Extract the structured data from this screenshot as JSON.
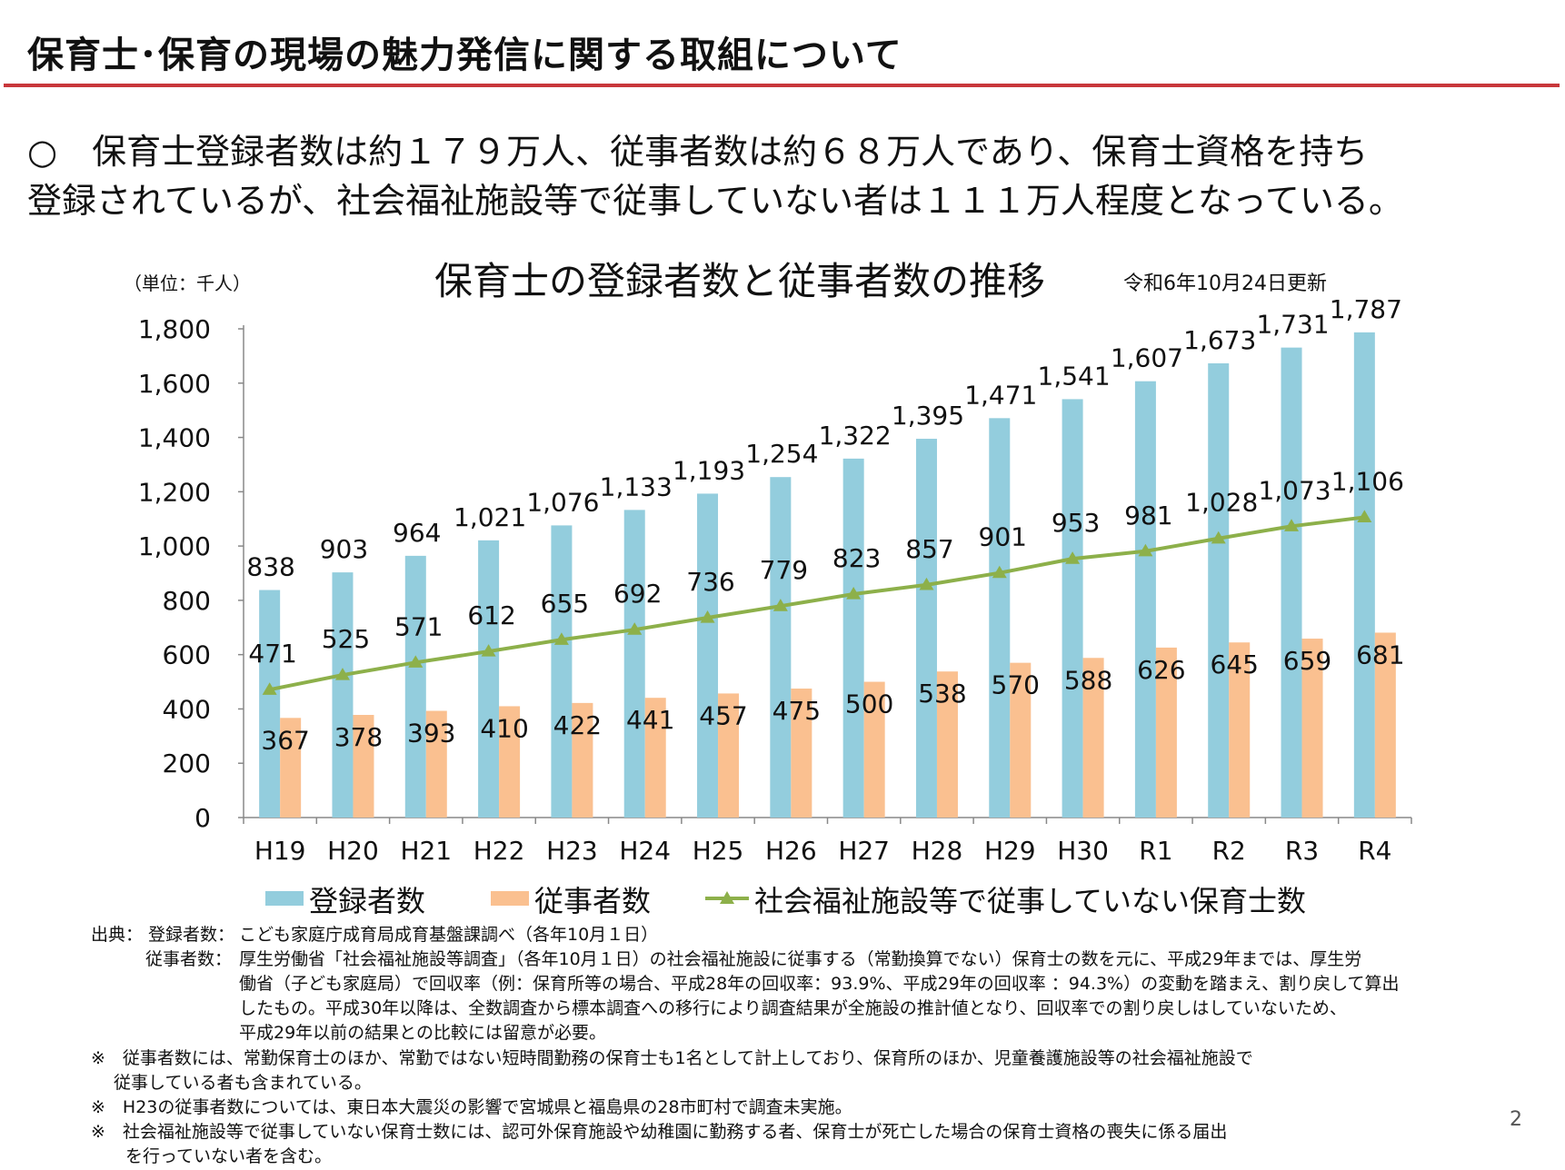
{
  "page": {
    "title": "保育士･保育の現場の魅力発信に関する取組について",
    "summary_line1": "○　保育士登録者数は約１７９万人、従事者数は約６８万人であり、保育士資格を持ち",
    "summary_line2": "登録されているが、社会福祉施設等で従事していない者は１１１万人程度となっている。",
    "page_number": "2"
  },
  "chart_data": {
    "type": "bar",
    "title": "保育士の登録者数と従事者数の推移",
    "unit_label": "（単位：千人）",
    "update_date": "令和6年10月24日更新",
    "categories": [
      "H19",
      "H20",
      "H21",
      "H22",
      "H23",
      "H24",
      "H25",
      "H26",
      "H27",
      "H28",
      "H29",
      "H30",
      "R1",
      "R2",
      "R3",
      "R4"
    ],
    "ylim": [
      0,
      1800
    ],
    "yticks": [
      0,
      200,
      400,
      600,
      800,
      1000,
      1200,
      1400,
      1600,
      1800
    ],
    "ytick_labels": [
      "0",
      "200",
      "400",
      "600",
      "800",
      "1,000",
      "1,200",
      "1,400",
      "1,600",
      "1,800"
    ],
    "series": [
      {
        "name": "登録者数",
        "kind": "bar",
        "color": "#93cddd",
        "values": [
          838,
          903,
          964,
          1021,
          1076,
          1133,
          1193,
          1254,
          1322,
          1395,
          1471,
          1541,
          1607,
          1673,
          1731,
          1787
        ],
        "labels": [
          "838",
          "903",
          "964",
          "1,021",
          "1,076",
          "1,133",
          "1,193",
          "1,254",
          "1,322",
          "1,395",
          "1,471",
          "1,541",
          "1,607",
          "1,673",
          "1,731",
          "1,787"
        ]
      },
      {
        "name": "従事者数",
        "kind": "bar",
        "color": "#fac090",
        "values": [
          367,
          378,
          393,
          410,
          422,
          441,
          457,
          475,
          500,
          538,
          570,
          588,
          626,
          645,
          659,
          681
        ],
        "labels": [
          "367",
          "378",
          "393",
          "410",
          "422",
          "441",
          "457",
          "475",
          "500",
          "538",
          "570",
          "588",
          "626",
          "645",
          "659",
          "681"
        ]
      },
      {
        "name": "社会福祉施設等で従事していない保育士数",
        "kind": "line",
        "color": "#8db04a",
        "values": [
          471,
          525,
          571,
          612,
          655,
          692,
          736,
          779,
          823,
          857,
          901,
          953,
          981,
          1028,
          1073,
          1106
        ],
        "labels": [
          "471",
          "525",
          "571",
          "612",
          "655",
          "692",
          "736",
          "779",
          "823",
          "857",
          "901",
          "953",
          "981",
          "1,028",
          "1,073",
          "1,106"
        ]
      }
    ]
  },
  "sources": {
    "heading": "出典：",
    "registered_label": "登録者数：",
    "registered_text": "こども家庭庁成育局成育基盤課調べ（各年10月１日）",
    "employed_label": "従事者数：",
    "employed_lines": [
      "厚生労働省「社会福祉施設等調査」（各年10月１日）の社会福祉施設に従事する（常勤換算でない）保育士の数を元に、平成29年までは、厚生労",
      "働省（子ども家庭局）で回収率（例：保育所等の場合、平成28年の回収率：93.9%、平成29年の回収率 ：94.3%）の変動を踏まえ、割り戻して算出",
      "したもの。平成30年以降は、全数調査から標本調査への移行により調査結果が全施設の推計値となり、回収率での割り戻しはしていないため、",
      "平成29年以前の結果との比較には留意が必要。"
    ],
    "notes": [
      "※　従事者数には、常勤保育士のほか、常勤ではない短時間勤務の保育士も1名として計上しており、保育所のほか、児童養護施設等の社会福祉施設で",
      "　 従事している者も含まれている。",
      "※　H23の従事者数については、東日本大震災の影響で宮城県と福島県の28市町村で調査未実施。",
      "※　社会福祉施設等で従事していない保育士数には、認可外保育施設や幼稚園に勤務する者、保育士が死亡した場合の保育士資格の喪失に係る届出",
      "　　を行っていない者を含む。"
    ]
  }
}
